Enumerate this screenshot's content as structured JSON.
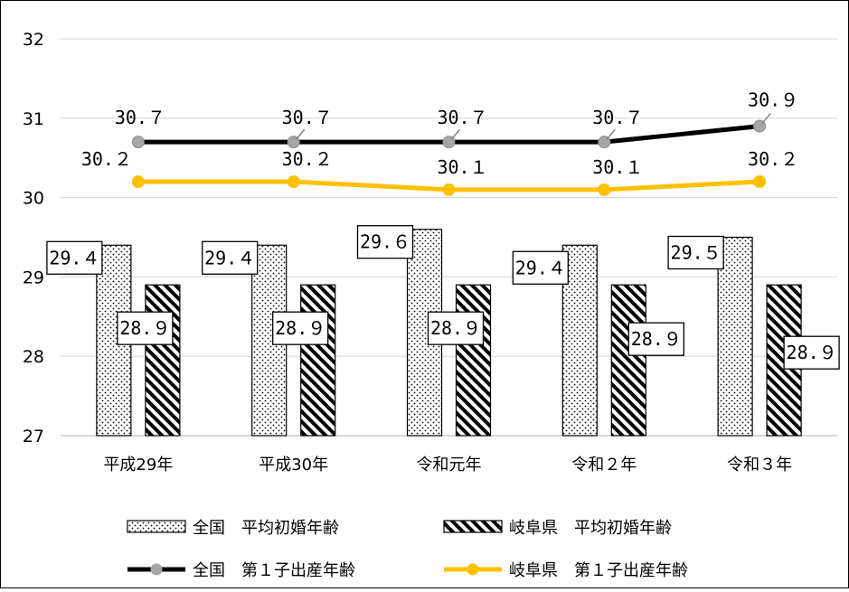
{
  "chart_data": {
    "type": "bar",
    "categories": [
      "平成29年",
      "平成30年",
      "令和元年",
      "令和２年",
      "令和３年"
    ],
    "ylim": [
      27,
      32
    ],
    "yticks": [
      "27",
      "28",
      "29",
      "30",
      "31",
      "32"
    ],
    "grid": true,
    "legend_position": "bottom",
    "series": [
      {
        "name": "全国　平均初婚年齢",
        "kind": "bar",
        "pattern": "dots",
        "values": [
          29.4,
          29.4,
          29.6,
          29.4,
          29.5
        ],
        "labels": [
          "29.４",
          "29.４",
          "29.６",
          "29.４",
          "29.５"
        ]
      },
      {
        "name": "岐阜県　平均初婚年齢",
        "kind": "bar",
        "pattern": "hatch",
        "values": [
          28.9,
          28.9,
          28.9,
          28.9,
          28.9
        ],
        "labels": [
          "28.９",
          "28.９",
          "28.９",
          "28.９",
          "28.９"
        ]
      },
      {
        "name": "全国　第１子出産年齢",
        "kind": "line",
        "color": "#000000",
        "marker": "#a6a6a6",
        "values": [
          30.7,
          30.7,
          30.7,
          30.7,
          30.9
        ],
        "labels": [
          "30.７",
          "30.７",
          "30.７",
          "30.７",
          "30.９"
        ]
      },
      {
        "name": "岐阜県　第１子出産年齢",
        "kind": "line",
        "color": "#ffc000",
        "marker": "#ffc000",
        "values": [
          30.2,
          30.2,
          30.1,
          30.1,
          30.2
        ],
        "labels": [
          "30.２",
          "30.２",
          "30.１",
          "30.１",
          "30.２"
        ]
      }
    ]
  }
}
